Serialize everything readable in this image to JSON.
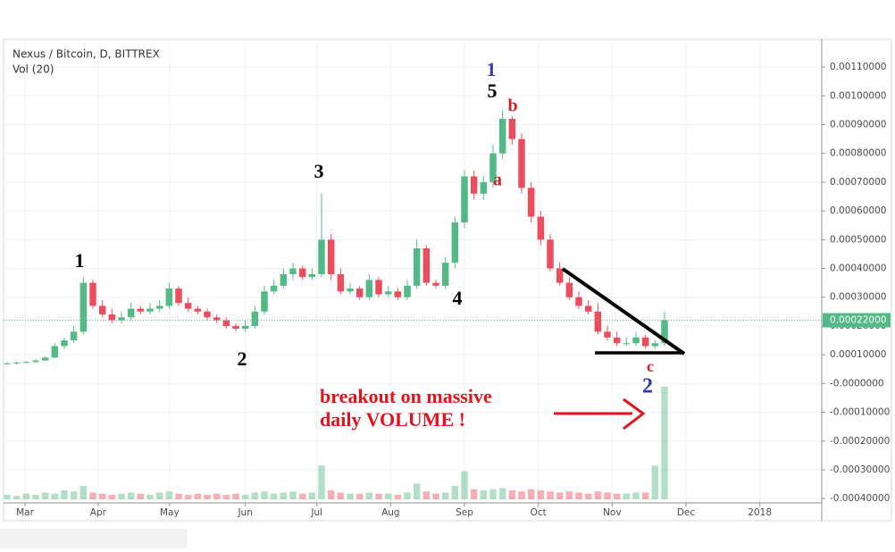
{
  "chart_data": {
    "type": "candlestick",
    "title": "Nexus / Bitcoin, D, BITTREX",
    "subtitle": "Vol (20)",
    "x": [
      0,
      4,
      8,
      12,
      16,
      20,
      24,
      28,
      32,
      36,
      40,
      44,
      48,
      52,
      56,
      60,
      64,
      68,
      72,
      76,
      80,
      84,
      88,
      92,
      96,
      100,
      104,
      108,
      112,
      116,
      120,
      124,
      128,
      132,
      136,
      140,
      144,
      148,
      152,
      156,
      160,
      164,
      168,
      172,
      176,
      180,
      184,
      188,
      192,
      196,
      200,
      204,
      208,
      212,
      216,
      220,
      224,
      228,
      232,
      236,
      240,
      244,
      248,
      252,
      256,
      260,
      264,
      268,
      272,
      276
    ],
    "open": [
      6.8e-05,
      7e-05,
      7.2e-05,
      7.5e-05,
      8e-05,
      9e-05,
      0.00013,
      0.00015,
      0.00018,
      0.00035,
      0.00027,
      0.00024,
      0.00022,
      0.00023,
      0.00026,
      0.00025,
      0.00026,
      0.00027,
      0.00033,
      0.00028,
      0.00026,
      0.00025,
      0.00023,
      0.00022,
      0.0002,
      0.00019,
      0.0002,
      0.00025,
      0.00032,
      0.00034,
      0.00038,
      0.0004,
      0.00037,
      0.00038,
      0.0005,
      0.00038,
      0.00032,
      0.00033,
      0.0003,
      0.00036,
      0.00031,
      0.00032,
      0.0003,
      0.00034,
      0.00047,
      0.00035,
      0.00034,
      0.00042,
      0.00056,
      0.00072,
      0.00066,
      0.0007,
      0.0008,
      0.00092,
      0.00085,
      0.00068,
      0.00058,
      0.0005,
      0.0004,
      0.00035,
      0.0003,
      0.00027,
      0.00025,
      0.00018,
      0.00016,
      0.00014,
      0.00014,
      0.00016,
      0.00013,
      0.00014
    ],
    "high": [
      7.4e-05,
      7.6e-05,
      7.9e-05,
      8.5e-05,
      9.5e-05,
      0.00014,
      0.00016,
      0.0002,
      0.00037,
      0.00036,
      0.00029,
      0.00026,
      0.00025,
      0.00028,
      0.00027,
      0.00028,
      0.00029,
      0.00035,
      0.00034,
      0.0003,
      0.00027,
      0.00026,
      0.00024,
      0.00023,
      0.00021,
      0.00022,
      0.00027,
      0.00034,
      0.00036,
      0.0004,
      0.00042,
      0.00041,
      0.0004,
      0.00066,
      0.00052,
      0.0004,
      0.00035,
      0.00034,
      0.00038,
      0.00037,
      0.00034,
      0.00033,
      0.00036,
      0.0005,
      0.00048,
      0.00036,
      0.00044,
      0.00058,
      0.00074,
      0.00074,
      0.00072,
      0.00083,
      0.00095,
      0.00093,
      0.00087,
      0.0007,
      0.0006,
      0.00052,
      0.00042,
      0.00037,
      0.00032,
      0.00029,
      0.00028,
      0.0002,
      0.00018,
      0.00016,
      0.00018,
      0.00017,
      0.00015,
      0.00025
    ],
    "low": [
      6.5e-05,
      6.7e-05,
      7e-05,
      7.3e-05,
      7.8e-05,
      8.8e-05,
      0.00012,
      0.00014,
      0.00017,
      0.00026,
      0.00023,
      0.00021,
      0.00021,
      0.00022,
      0.00024,
      0.00024,
      0.00025,
      0.00026,
      0.00027,
      0.00025,
      0.00024,
      0.00022,
      0.00021,
      0.00019,
      0.00018,
      0.00018,
      0.00019,
      0.00024,
      0.00031,
      0.00033,
      0.00036,
      0.00036,
      0.00036,
      0.00037,
      0.00036,
      0.00031,
      0.00031,
      0.00029,
      0.00029,
      0.0003,
      0.0003,
      0.00029,
      0.00029,
      0.00033,
      0.00034,
      0.00033,
      0.00033,
      0.0004,
      0.00054,
      0.00064,
      0.00064,
      0.00068,
      0.00078,
      0.00083,
      0.00066,
      0.00056,
      0.00048,
      0.00039,
      0.00034,
      0.00029,
      0.00026,
      0.00024,
      0.00017,
      0.00015,
      0.00013,
      0.00013,
      0.00013,
      0.00012,
      0.00012,
      0.00013
    ],
    "close": [
      7e-05,
      7.2e-05,
      7.5e-05,
      8e-05,
      9e-05,
      0.00013,
      0.00015,
      0.00018,
      0.00035,
      0.00027,
      0.00024,
      0.00022,
      0.00023,
      0.00026,
      0.00025,
      0.00026,
      0.00027,
      0.00033,
      0.00028,
      0.00026,
      0.00025,
      0.00023,
      0.00022,
      0.0002,
      0.00019,
      0.0002,
      0.00025,
      0.00032,
      0.00034,
      0.00038,
      0.0004,
      0.00037,
      0.00038,
      0.0005,
      0.00038,
      0.00032,
      0.00033,
      0.0003,
      0.00036,
      0.00031,
      0.00032,
      0.0003,
      0.00034,
      0.00047,
      0.00035,
      0.00034,
      0.00042,
      0.00056,
      0.00072,
      0.00066,
      0.0007,
      0.0008,
      0.00092,
      0.00085,
      0.00068,
      0.00058,
      0.0005,
      0.0004,
      0.00035,
      0.0003,
      0.00027,
      0.00025,
      0.00018,
      0.00016,
      0.00014,
      0.00014,
      0.00016,
      0.00013,
      0.00014,
      0.00022
    ],
    "volume": [
      4,
      3,
      5,
      4,
      6,
      5,
      8,
      7,
      12,
      6,
      5,
      4,
      5,
      6,
      5,
      4,
      6,
      7,
      5,
      4,
      5,
      4,
      5,
      4,
      5,
      4,
      6,
      7,
      5,
      6,
      7,
      5,
      6,
      30,
      8,
      6,
      5,
      5,
      6,
      5,
      5,
      4,
      6,
      14,
      7,
      5,
      6,
      12,
      25,
      9,
      8,
      9,
      10,
      8,
      7,
      9,
      8,
      7,
      6,
      7,
      6,
      5,
      7,
      6,
      5,
      5,
      6,
      6,
      30,
      100
    ],
    "up_color": "#53b987",
    "down_color": "#eb4d5c",
    "xlim": [
      0,
      342
    ],
    "xticks": [
      {
        "value": 7.5,
        "label": "Mar"
      },
      {
        "value": 38.2,
        "label": "Apr"
      },
      {
        "value": 68.2,
        "label": "May"
      },
      {
        "value": 100,
        "label": "Jun"
      },
      {
        "value": 130,
        "label": "Jul"
      },
      {
        "value": 161,
        "label": "Aug"
      },
      {
        "value": 192,
        "label": "Sep"
      },
      {
        "value": 223,
        "label": "Oct"
      },
      {
        "value": 254,
        "label": "Nov"
      },
      {
        "value": 285,
        "label": "Dec"
      },
      {
        "value": 316,
        "label": "2018"
      }
    ],
    "ylim": [
      -0.000415,
      0.00124
    ],
    "yticks": [
      {
        "value": 0.0011,
        "label": "0.00110000"
      },
      {
        "value": 0.001,
        "label": "0.00100000"
      },
      {
        "value": 0.0009,
        "label": "0.00090000"
      },
      {
        "value": 0.0008,
        "label": "0.00080000"
      },
      {
        "value": 0.0007,
        "label": "0.00070000"
      },
      {
        "value": 0.0006,
        "label": "0.00060000"
      },
      {
        "value": 0.0005,
        "label": "0.00050000"
      },
      {
        "value": 0.0004,
        "label": "0.00040000"
      },
      {
        "value": 0.0003,
        "label": "0.00030000"
      },
      {
        "value": 0.0002,
        "label": "0.00020000"
      },
      {
        "value": 0.0001,
        "label": "0.00010000"
      },
      {
        "value": 0,
        "label": "-0.0000000"
      },
      {
        "value": -0.0001,
        "label": "-0.00010000"
      },
      {
        "value": -0.0002,
        "label": "-0.00020000"
      },
      {
        "value": -0.0003,
        "label": "-0.00030000"
      },
      {
        "value": -0.0004,
        "label": "-0.00040000"
      }
    ],
    "grid": true,
    "last_price": {
      "value": 0.00022,
      "label": "0.00022000"
    },
    "annotations": [
      {
        "text": "1",
        "color": "#000000"
      },
      {
        "text": "2",
        "color": "#000000"
      },
      {
        "text": "3",
        "color": "#000000"
      },
      {
        "text": "4",
        "color": "#000000"
      },
      {
        "text": "5",
        "color": "#000000"
      },
      {
        "text": "1",
        "color": "#3a3aa8"
      },
      {
        "text": "a",
        "color": "#d0202a"
      },
      {
        "text": "b",
        "color": "#d0202a"
      },
      {
        "text": "c",
        "color": "#d0202a"
      },
      {
        "text": "2",
        "color": "#3a3aa8"
      },
      {
        "text": "breakout on massive",
        "color": "#e0141e"
      },
      {
        "text": "daily VOLUME !",
        "color": "#e0141e"
      }
    ]
  }
}
